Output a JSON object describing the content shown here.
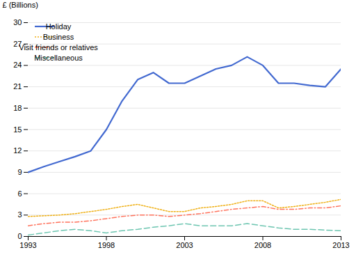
{
  "chart_data": {
    "type": "line",
    "ylabel": "£ (Billions)",
    "x": [
      1993,
      1994,
      1995,
      1996,
      1997,
      1998,
      1999,
      2000,
      2001,
      2002,
      2003,
      2004,
      2005,
      2006,
      2007,
      2008,
      2009,
      2010,
      2011,
      2012,
      2013
    ],
    "series": [
      {
        "name": "Holiday",
        "line_style": "solid",
        "values": [
          9.0,
          9.8,
          10.5,
          11.2,
          12.0,
          15.0,
          19.0,
          22.0,
          23.0,
          21.5,
          21.5,
          22.5,
          23.5,
          24.0,
          25.2,
          24.0,
          21.5,
          21.5,
          21.2,
          21.0,
          23.5
        ]
      },
      {
        "name": "Business",
        "line_style": "dotted",
        "values": [
          2.8,
          2.9,
          3.0,
          3.2,
          3.5,
          3.8,
          4.2,
          4.5,
          4.0,
          3.5,
          3.5,
          4.0,
          4.2,
          4.5,
          5.0,
          5.0,
          4.0,
          4.2,
          4.5,
          4.8,
          5.2
        ]
      },
      {
        "name": "Visit friends or relatives",
        "line_style": "dashdot",
        "values": [
          1.5,
          1.8,
          2.0,
          2.0,
          2.2,
          2.5,
          2.8,
          3.0,
          3.0,
          2.8,
          3.0,
          3.2,
          3.5,
          3.8,
          4.0,
          4.2,
          3.8,
          3.8,
          4.0,
          4.0,
          4.3
        ]
      },
      {
        "name": "Miscellaneous",
        "line_style": "dashed",
        "values": [
          0.2,
          0.5,
          0.8,
          1.0,
          0.8,
          0.5,
          0.8,
          1.0,
          1.3,
          1.5,
          1.8,
          1.5,
          1.5,
          1.5,
          1.8,
          1.5,
          1.2,
          1.0,
          1.0,
          0.9,
          0.8
        ]
      }
    ],
    "xlim": [
      1993,
      2013
    ],
    "xticks": [
      1993,
      1998,
      2003,
      2008,
      2013
    ],
    "ylim": [
      0,
      30
    ],
    "yticks": [
      0,
      3,
      6,
      9,
      12,
      15,
      18,
      21,
      24,
      27,
      30
    ],
    "grid": true,
    "legend": "upper left"
  }
}
